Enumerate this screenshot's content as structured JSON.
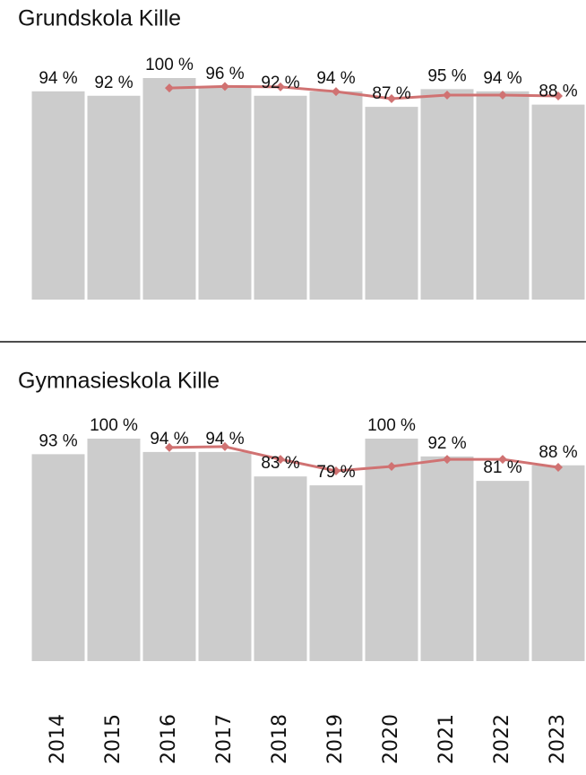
{
  "chart_data": [
    {
      "type": "bar",
      "title": "Grundskola Kille",
      "categories": [
        null,
        null,
        null,
        null,
        null,
        null,
        null,
        null,
        null,
        null
      ],
      "ylim": [
        0,
        100
      ],
      "series": [
        {
          "type": "bar",
          "color": "#cccccc",
          "values": [
            94,
            92,
            100,
            96,
            92,
            94,
            87,
            95,
            94,
            88
          ],
          "value_labels": [
            "94 %",
            "92 %",
            "100 %",
            "96 %",
            "92 %",
            "94 %",
            "87 %",
            "95 %",
            "94 %",
            "88 %"
          ]
        },
        {
          "type": "line",
          "color": "#d07272",
          "values": [
            null,
            null,
            95.5,
            96.2,
            96.0,
            93.9,
            90.7,
            92.3,
            92.3,
            91.9
          ]
        }
      ]
    },
    {
      "type": "bar",
      "title": "Gymnasieskola Kille",
      "categories": [
        "2014",
        "2015",
        "2016",
        "2017",
        "2018",
        "2019",
        "2020",
        "2021",
        "2022",
        "2023"
      ],
      "ylim": [
        0,
        100
      ],
      "series": [
        {
          "type": "bar",
          "color": "#cccccc",
          "values": [
            93,
            100,
            94,
            94,
            83,
            79,
            100,
            92,
            81,
            88
          ],
          "value_labels": [
            "93 %",
            "100 %",
            "94 %",
            "94 %",
            "83 %",
            "79 %",
            "100 %",
            "92 %",
            "81 %",
            "88 %"
          ]
        },
        {
          "type": "line",
          "color": "#d07272",
          "values": [
            null,
            null,
            96.0,
            96.4,
            90.7,
            85.5,
            87.5,
            90.7,
            90.7,
            87.1
          ]
        }
      ]
    }
  ]
}
